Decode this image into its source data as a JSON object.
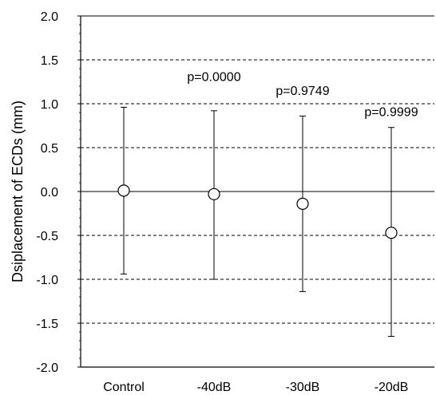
{
  "chart_data": {
    "type": "scatter",
    "title": "",
    "xlabel": "",
    "ylabel": "Dsiplacement of ECDs (mm)",
    "ylim": [
      -2.0,
      2.0
    ],
    "yticks": [
      "2.0",
      "1.5",
      "1.0",
      "0.5",
      "0.0",
      "-0.5",
      "-1.0",
      "-1.5",
      "-2.0"
    ],
    "ytick_values": [
      2.0,
      1.5,
      1.0,
      0.5,
      0.0,
      -0.5,
      -1.0,
      -1.5,
      -2.0
    ],
    "categories": [
      "Control",
      "-40dB",
      "-30dB",
      "-20dB"
    ],
    "series": [
      {
        "values": [
          0.01,
          -0.03,
          -0.14,
          -0.47
        ],
        "error_low": [
          -0.94,
          -1.0,
          -1.14,
          -1.65
        ],
        "error_high": [
          0.96,
          0.92,
          0.86,
          0.73
        ]
      }
    ],
    "annotations": [
      {
        "text": "p=0.0000",
        "category_index": 1,
        "y": 1.26
      },
      {
        "text": "p=0.9749",
        "category_index": 2,
        "y": 1.1
      },
      {
        "text": "p=0.9999",
        "category_index": 3,
        "y": 0.86
      }
    ],
    "grid": "horizontal dashed",
    "legend": "none"
  }
}
